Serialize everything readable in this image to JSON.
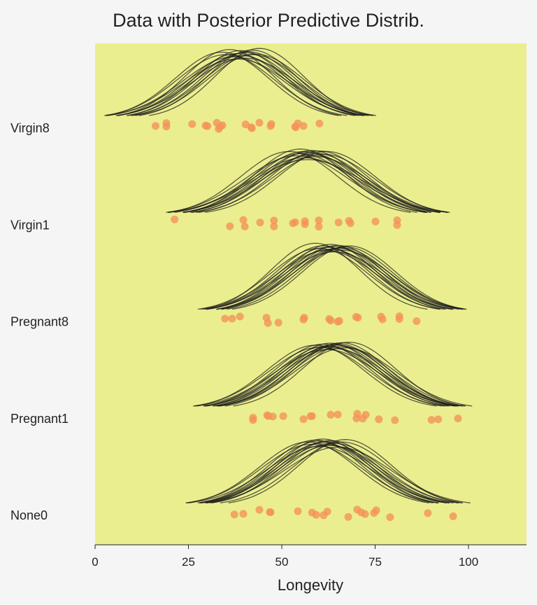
{
  "chart_data": {
    "type": "scatter",
    "title": "Data with Posterior Predictive Distrib.",
    "xlabel": "Longevity",
    "ylabel": "",
    "xlim": [
      0,
      115.5
    ],
    "xticks": [
      "0",
      "25",
      "50",
      "75",
      "100"
    ],
    "xtick_values": [
      0,
      25,
      50,
      75,
      100
    ],
    "grid": false,
    "colors": {
      "background": "#f5f5f5",
      "plot_bg": "#ebee8e",
      "points": "#f4925a",
      "curves": "#1a1a1a"
    },
    "categories": [
      "Virgin8",
      "Virgin1",
      "Pregnant8",
      "Pregnant1",
      "None0"
    ],
    "series": [
      {
        "category": "Virgin8",
        "values": [
          16.2,
          19.1,
          19.1,
          26.0,
          29.6,
          30.1,
          32.6,
          33.1,
          33.5,
          34.1,
          40.3,
          42.0,
          41.8,
          44.0,
          47.0,
          47.2,
          53.7,
          54.3,
          53.6,
          55.8,
          60.1
        ],
        "posterior_curves": {
          "mu": [
            34,
            35,
            36,
            37,
            38,
            38,
            39,
            39,
            40,
            40,
            41,
            42,
            42,
            43,
            44
          ],
          "sigma": [
            12.5,
            13,
            12,
            13.5,
            12.8,
            14,
            12.2,
            13.2,
            12.6,
            13.8,
            12.4,
            13,
            12.1,
            12.9,
            11.8
          ]
        }
      },
      {
        "category": "Virgin1",
        "values": [
          21.3,
          36.1,
          40.1,
          39.7,
          44.2,
          47.9,
          47.9,
          53.6,
          53.0,
          56.2,
          56.2,
          59.9,
          59.9,
          65.2,
          68.0,
          68.4,
          75.1,
          80.9,
          80.9
        ],
        "posterior_curves": {
          "mu": [
            52,
            54,
            55,
            55,
            56,
            56,
            57,
            57,
            58,
            58,
            59,
            59,
            60,
            61,
            62
          ],
          "sigma": [
            13,
            14,
            13.5,
            12.5,
            14.5,
            13,
            13.2,
            15,
            13.8,
            12.8,
            13.4,
            14.2,
            12.9,
            13.6,
            13
          ]
        }
      },
      {
        "category": "Pregnant8",
        "values": [
          34.8,
          36.7,
          38.8,
          46.3,
          45.9,
          49.1,
          55.8,
          56.0,
          63.1,
          62.7,
          65.0,
          65.4,
          69.9,
          70.4,
          77.0,
          76.6,
          81.5,
          81.5,
          86.1
        ],
        "posterior_curves": {
          "mu": [
            59,
            60,
            61,
            62,
            62,
            63,
            63,
            64,
            64,
            65,
            65,
            66,
            66,
            67,
            68
          ],
          "sigma": [
            12,
            13,
            12.5,
            13.5,
            12.8,
            12.2,
            13.2,
            12.6,
            13.8,
            12.4,
            13,
            12.9,
            13.4,
            12.7,
            12.5
          ]
        }
      },
      {
        "category": "Pregnant1",
        "values": [
          42.3,
          42.3,
          46.1,
          46.4,
          47.6,
          50.4,
          55.8,
          57.7,
          58.1,
          63.1,
          65.0,
          70.0,
          70.2,
          72.5,
          71.7,
          76.0,
          80.3,
          90.1,
          91.9,
          97.2
        ],
        "posterior_curves": {
          "mu": [
            59,
            60,
            61,
            62,
            62,
            63,
            63,
            64,
            64,
            65,
            65,
            66,
            66,
            67,
            68
          ],
          "sigma": [
            13,
            13.5,
            12.8,
            13.2,
            14,
            12.6,
            13.4,
            12.9,
            13.8,
            13,
            12.7,
            13.3,
            12.5,
            13.6,
            12.4
          ]
        }
      },
      {
        "category": "None0",
        "values": [
          37.3,
          39.7,
          44.0,
          46.8,
          47.0,
          54.3,
          58.1,
          59.2,
          61.2,
          62.2,
          67.8,
          70.2,
          71.3,
          72.3,
          74.7,
          75.3,
          79.0,
          89.1,
          95.9
        ],
        "posterior_curves": {
          "mu": [
            57,
            58,
            59,
            60,
            60,
            61,
            61,
            62,
            62,
            63,
            63,
            64,
            65,
            66,
            67
          ],
          "sigma": [
            13,
            13.5,
            12.6,
            14,
            12.8,
            13.2,
            12.4,
            13.6,
            12.9,
            13.8,
            12.7,
            13.3,
            14.2,
            13,
            12.5
          ]
        }
      }
    ]
  }
}
